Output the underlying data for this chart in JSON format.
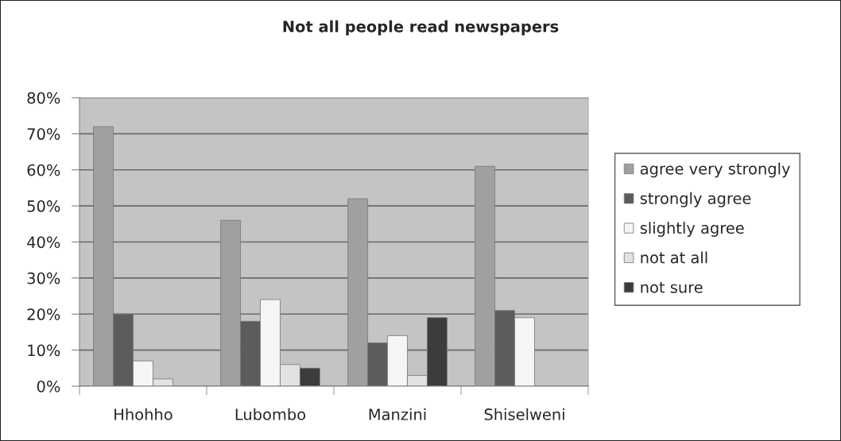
{
  "chart_data": {
    "type": "bar",
    "title": "Not all people read newspapers",
    "categories": [
      "Hhohho",
      "Lubombo",
      "Manzini",
      "Shiselweni"
    ],
    "series": [
      {
        "name": "agree very strongly",
        "color": "#a0a0a0",
        "values": [
          72,
          46,
          52,
          61
        ]
      },
      {
        "name": "strongly agree",
        "color": "#5c5c5c",
        "values": [
          20,
          18,
          12,
          21
        ]
      },
      {
        "name": "slightly agree",
        "color": "#f5f5f5",
        "values": [
          7,
          24,
          14,
          19
        ]
      },
      {
        "name": "not at all",
        "color": "#e2e2e2",
        "values": [
          2,
          6,
          3,
          null
        ]
      },
      {
        "name": "not sure",
        "color": "#3c3c3c",
        "values": [
          null,
          5,
          19,
          null
        ]
      }
    ],
    "ylim": [
      0,
      80
    ],
    "yticks": [
      {
        "value": 0,
        "label": "0%"
      },
      {
        "value": 10,
        "label": "10%"
      },
      {
        "value": 20,
        "label": "20%"
      },
      {
        "value": 30,
        "label": "30%"
      },
      {
        "value": 40,
        "label": "40%"
      },
      {
        "value": 50,
        "label": "50%"
      },
      {
        "value": 60,
        "label": "60%"
      },
      {
        "value": 70,
        "label": "70%"
      },
      {
        "value": 80,
        "label": "80%"
      }
    ],
    "grid": "y",
    "legend": "right"
  }
}
